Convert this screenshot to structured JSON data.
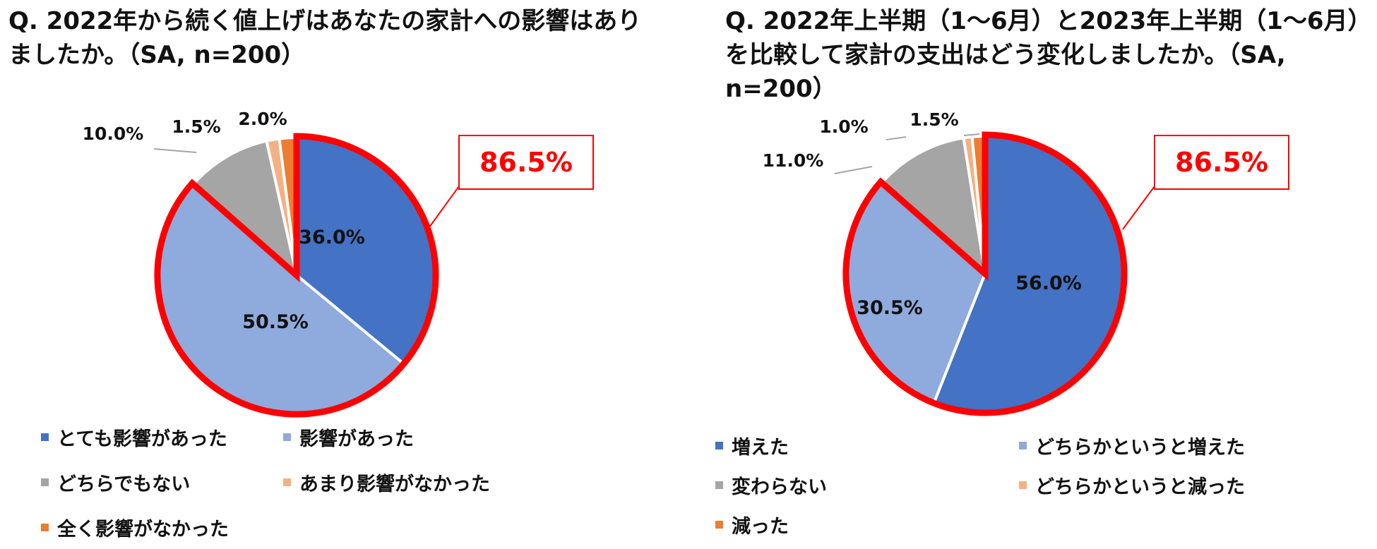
{
  "colors": {
    "blue": "#4472c4",
    "light_blue": "#8faadc",
    "gray": "#a5a5a5",
    "peach": "#f4b183",
    "orange": "#ed7d31",
    "highlight": "#ff0000"
  },
  "chart_data": [
    {
      "type": "pie",
      "title": "Q. 2022年から続く値上げはあなたの家計への影響はありましたか。（SA, n=200）",
      "unit": "%",
      "series": [
        {
          "name": "とても影響があった",
          "value": 36.0,
          "label": "36.0%",
          "color": "#4472c4"
        },
        {
          "name": "影響があった",
          "value": 50.5,
          "label": "50.5%",
          "color": "#8faadc"
        },
        {
          "name": "どちらでもない",
          "value": 10.0,
          "label": "10.0%",
          "color": "#a5a5a5"
        },
        {
          "name": "あまり影響がなかった",
          "value": 1.5,
          "label": "1.5%",
          "color": "#f4b183"
        },
        {
          "name": "全く影響がなかった",
          "value": 2.0,
          "label": "2.0%",
          "color": "#ed7d31"
        }
      ],
      "highlight": {
        "label": "86.5%",
        "value": 86.5
      },
      "legend_position": "bottom"
    },
    {
      "type": "pie",
      "title": "Q. 2022年上半期（1〜6月）と2023年上半期（1〜6月）を比較して家計の支出はどう変化しましたか。（SA, n=200）",
      "unit": "%",
      "series": [
        {
          "name": "増えた",
          "value": 56.0,
          "label": "56.0%",
          "color": "#4472c4"
        },
        {
          "name": "どちらかというと増えた",
          "value": 30.5,
          "label": "30.5%",
          "color": "#8faadc"
        },
        {
          "name": "変わらない",
          "value": 11.0,
          "label": "11.0%",
          "color": "#a5a5a5"
        },
        {
          "name": "どちらかというと減った",
          "value": 1.0,
          "label": "1.0%",
          "color": "#f4b183"
        },
        {
          "name": "減った",
          "value": 1.5,
          "label": "1.5%",
          "color": "#ed7d31"
        }
      ],
      "highlight": {
        "label": "86.5%",
        "value": 86.5
      },
      "legend_position": "bottom"
    }
  ]
}
